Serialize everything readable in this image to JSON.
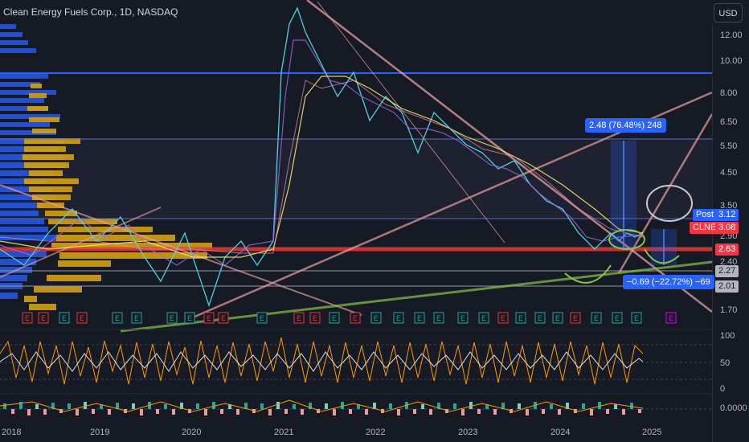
{
  "header": {
    "title": "Clean Energy Fuels Corp., 1D, NASDAQ",
    "currency": "USD"
  },
  "price_axis": [
    "12.00",
    "10.00",
    "8.00",
    "6.50",
    "5.50",
    "4.50",
    "3.50",
    "2.90",
    "2.40",
    "1.70"
  ],
  "time_axis": [
    "2018",
    "2019",
    "2020",
    "2021",
    "2022",
    "2023",
    "2024",
    "2025"
  ],
  "badges": [
    {
      "label": "Post",
      "value": "3.12",
      "color": "#2962ff"
    },
    {
      "label": "CLNE",
      "value": "3.08",
      "color": "#f23645"
    },
    {
      "label": "",
      "value": "2.63",
      "color": "#f23645"
    },
    {
      "label": "",
      "value": "2.27",
      "color": "#b2b5be"
    },
    {
      "label": "",
      "value": "2.01",
      "color": "#b2b5be"
    }
  ],
  "measure_up": "2.48 (76.48%) 248",
  "measure_down": "−0.69 (−22.72%) −69",
  "osc_axis": [
    "100",
    "50",
    "0"
  ],
  "macd_axis": "0.0000",
  "earnings_marker": "E",
  "colors": {
    "background": "#161a25",
    "resistance_red": "#e53935",
    "support_blue": "#2962ff",
    "volume_profile_gold": "#d4a017",
    "volume_profile_blue": "#2962ff",
    "trendline_pink": "#e9a0a0",
    "trendline_green": "#8bc34a"
  }
}
